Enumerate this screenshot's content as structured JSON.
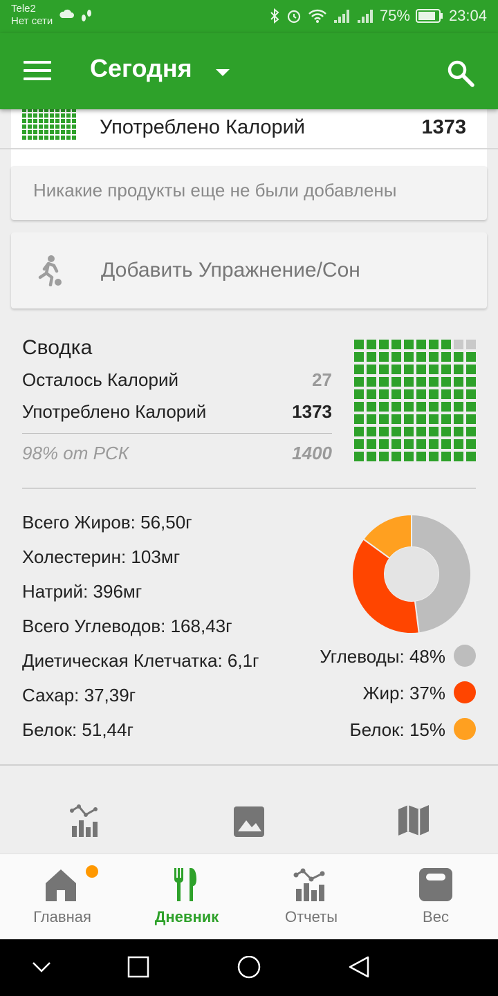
{
  "status_bar": {
    "carrier": "Tele2",
    "network": "Нет сети",
    "battery": "75%",
    "time": "23:04"
  },
  "app_bar": {
    "title": "Сегодня"
  },
  "top_card": {
    "label": "Употреблено Калорий",
    "value": "1373"
  },
  "empty_message": "Никакие продукты еще не были добавлены",
  "exercise_button": "Добавить Упражнение/Сон",
  "summary": {
    "title": "Сводка",
    "remaining_label": "Осталось Калорий",
    "remaining_value": "27",
    "consumed_label": "Употреблено Калорий",
    "consumed_value": "1373",
    "rsk_label": "98% от РСК",
    "rsk_value": "1400",
    "waffle_filled": 98,
    "waffle_total": 100
  },
  "nutrients": [
    "Всего Жиров: 56,50г",
    "Холестерин: 103мг",
    "Натрий: 396мг",
    "Всего Углеводов: 168,43г",
    "Диетическая Клетчатка: 6,1г",
    "Сахар: 37,39г",
    "Белок: 51,44г"
  ],
  "macros": [
    {
      "label": "Углеводы: 48%",
      "percent": 48,
      "color": "#bdbdbd"
    },
    {
      "label": "Жир: 37%",
      "percent": 37,
      "color": "#ff4500"
    },
    {
      "label": "Белок: 15%",
      "percent": 15,
      "color": "#ffa020"
    }
  ],
  "bottom_nav": [
    {
      "label": "Главная",
      "icon": "home-icon"
    },
    {
      "label": "Дневник",
      "icon": "fork-knife-icon"
    },
    {
      "label": "Отчеты",
      "icon": "chart-icon"
    },
    {
      "label": "Вес",
      "icon": "scale-icon"
    }
  ],
  "colors": {
    "brand": "#2ea12a",
    "notification": "#ff9800"
  }
}
